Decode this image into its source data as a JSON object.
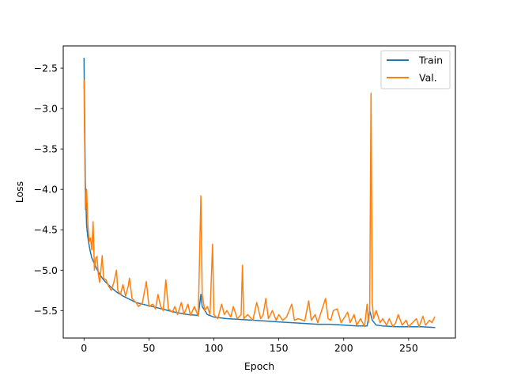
{
  "chart_data": {
    "type": "line",
    "xlabel": "Epoch",
    "ylabel": "Loss",
    "xlim": [
      -16,
      286
    ],
    "ylim": [
      -5.84,
      -2.225
    ],
    "x_ticks": [
      0,
      50,
      100,
      150,
      200,
      250
    ],
    "x_tick_labels": [
      "0",
      "50",
      "100",
      "150",
      "200",
      "250"
    ],
    "y_ticks": [
      -2.5,
      -3.0,
      -3.5,
      -4.0,
      -4.5,
      -5.0,
      -5.5
    ],
    "y_tick_labels": [
      "−2.5",
      "−3.0",
      "−3.5",
      "−4.0",
      "−4.5",
      "−5.0",
      "−5.5"
    ],
    "grid": false,
    "legend_position": "top-right",
    "series": [
      {
        "name": "Train",
        "color": "#1f77b4",
        "points": [
          [
            0,
            -2.38
          ],
          [
            1,
            -3.9
          ],
          [
            2,
            -4.45
          ],
          [
            3,
            -4.6
          ],
          [
            4,
            -4.7
          ],
          [
            5,
            -4.78
          ],
          [
            6,
            -4.85
          ],
          [
            8,
            -4.92
          ],
          [
            10,
            -4.99
          ],
          [
            12,
            -5.05
          ],
          [
            15,
            -5.12
          ],
          [
            20,
            -5.2
          ],
          [
            25,
            -5.27
          ],
          [
            30,
            -5.32
          ],
          [
            35,
            -5.36
          ],
          [
            40,
            -5.4
          ],
          [
            50,
            -5.44
          ],
          [
            60,
            -5.48
          ],
          [
            70,
            -5.52
          ],
          [
            80,
            -5.55
          ],
          [
            88,
            -5.56
          ],
          [
            90,
            -5.3
          ],
          [
            91,
            -5.45
          ],
          [
            95,
            -5.55
          ],
          [
            100,
            -5.58
          ],
          [
            110,
            -5.6
          ],
          [
            120,
            -5.61
          ],
          [
            130,
            -5.62
          ],
          [
            140,
            -5.63
          ],
          [
            150,
            -5.64
          ],
          [
            160,
            -5.65
          ],
          [
            170,
            -5.66
          ],
          [
            180,
            -5.67
          ],
          [
            190,
            -5.67
          ],
          [
            200,
            -5.68
          ],
          [
            210,
            -5.69
          ],
          [
            218,
            -5.69
          ],
          [
            220,
            -5.5
          ],
          [
            222,
            -5.62
          ],
          [
            225,
            -5.68
          ],
          [
            230,
            -5.69
          ],
          [
            240,
            -5.7
          ],
          [
            250,
            -5.7
          ],
          [
            260,
            -5.7
          ],
          [
            270,
            -5.71
          ]
        ]
      },
      {
        "name": "Val.",
        "color": "#ff7f0e",
        "points": [
          [
            0,
            -2.65
          ],
          [
            1,
            -4.25
          ],
          [
            2,
            -4.0
          ],
          [
            3,
            -4.45
          ],
          [
            4,
            -4.65
          ],
          [
            5,
            -4.6
          ],
          [
            6,
            -4.75
          ],
          [
            7,
            -4.4
          ],
          [
            8,
            -5.0
          ],
          [
            9,
            -4.85
          ],
          [
            10,
            -4.83
          ],
          [
            11,
            -5.05
          ],
          [
            12,
            -5.15
          ],
          [
            13,
            -5.0
          ],
          [
            14,
            -4.82
          ],
          [
            15,
            -5.1
          ],
          [
            17,
            -5.12
          ],
          [
            19,
            -5.2
          ],
          [
            21,
            -5.25
          ],
          [
            23,
            -5.15
          ],
          [
            25,
            -5.0
          ],
          [
            26,
            -5.25
          ],
          [
            28,
            -5.3
          ],
          [
            30,
            -5.18
          ],
          [
            32,
            -5.32
          ],
          [
            34,
            -5.2
          ],
          [
            35,
            -5.1
          ],
          [
            37,
            -5.35
          ],
          [
            40,
            -5.4
          ],
          [
            42,
            -5.45
          ],
          [
            45,
            -5.4
          ],
          [
            48,
            -5.14
          ],
          [
            50,
            -5.45
          ],
          [
            53,
            -5.42
          ],
          [
            55,
            -5.48
          ],
          [
            57,
            -5.3
          ],
          [
            59,
            -5.45
          ],
          [
            61,
            -5.5
          ],
          [
            63,
            -5.12
          ],
          [
            65,
            -5.48
          ],
          [
            68,
            -5.52
          ],
          [
            70,
            -5.45
          ],
          [
            72,
            -5.55
          ],
          [
            75,
            -5.4
          ],
          [
            77,
            -5.55
          ],
          [
            80,
            -5.42
          ],
          [
            82,
            -5.56
          ],
          [
            85,
            -5.45
          ],
          [
            88,
            -5.57
          ],
          [
            90,
            -4.08
          ],
          [
            91,
            -5.3
          ],
          [
            93,
            -5.5
          ],
          [
            95,
            -5.45
          ],
          [
            97,
            -5.55
          ],
          [
            99,
            -4.68
          ],
          [
            100,
            -5.55
          ],
          [
            103,
            -5.6
          ],
          [
            106,
            -5.42
          ],
          [
            108,
            -5.55
          ],
          [
            110,
            -5.5
          ],
          [
            113,
            -5.58
          ],
          [
            115,
            -5.45
          ],
          [
            118,
            -5.6
          ],
          [
            121,
            -5.55
          ],
          [
            122,
            -4.94
          ],
          [
            123,
            -5.6
          ],
          [
            126,
            -5.55
          ],
          [
            130,
            -5.62
          ],
          [
            133,
            -5.4
          ],
          [
            136,
            -5.6
          ],
          [
            138,
            -5.55
          ],
          [
            140,
            -5.35
          ],
          [
            142,
            -5.6
          ],
          [
            145,
            -5.5
          ],
          [
            148,
            -5.62
          ],
          [
            150,
            -5.55
          ],
          [
            153,
            -5.62
          ],
          [
            156,
            -5.58
          ],
          [
            160,
            -5.42
          ],
          [
            162,
            -5.62
          ],
          [
            165,
            -5.6
          ],
          [
            170,
            -5.63
          ],
          [
            173,
            -5.38
          ],
          [
            175,
            -5.62
          ],
          [
            178,
            -5.55
          ],
          [
            180,
            -5.65
          ],
          [
            183,
            -5.5
          ],
          [
            186,
            -5.35
          ],
          [
            188,
            -5.6
          ],
          [
            190,
            -5.62
          ],
          [
            192,
            -5.5
          ],
          [
            195,
            -5.48
          ],
          [
            198,
            -5.65
          ],
          [
            200,
            -5.6
          ],
          [
            203,
            -5.52
          ],
          [
            205,
            -5.65
          ],
          [
            208,
            -5.55
          ],
          [
            210,
            -5.68
          ],
          [
            213,
            -5.6
          ],
          [
            216,
            -5.7
          ],
          [
            218,
            -5.42
          ],
          [
            219,
            -5.65
          ],
          [
            220,
            -5.5
          ],
          [
            221,
            -2.81
          ],
          [
            222,
            -5.4
          ],
          [
            223,
            -5.6
          ],
          [
            225,
            -5.5
          ],
          [
            228,
            -5.65
          ],
          [
            230,
            -5.6
          ],
          [
            233,
            -5.68
          ],
          [
            235,
            -5.6
          ],
          [
            238,
            -5.7
          ],
          [
            240,
            -5.65
          ],
          [
            242,
            -5.55
          ],
          [
            245,
            -5.68
          ],
          [
            248,
            -5.62
          ],
          [
            250,
            -5.7
          ],
          [
            253,
            -5.65
          ],
          [
            256,
            -5.6
          ],
          [
            258,
            -5.7
          ],
          [
            261,
            -5.57
          ],
          [
            263,
            -5.68
          ],
          [
            266,
            -5.62
          ],
          [
            268,
            -5.65
          ],
          [
            270,
            -5.58
          ]
        ]
      }
    ]
  }
}
